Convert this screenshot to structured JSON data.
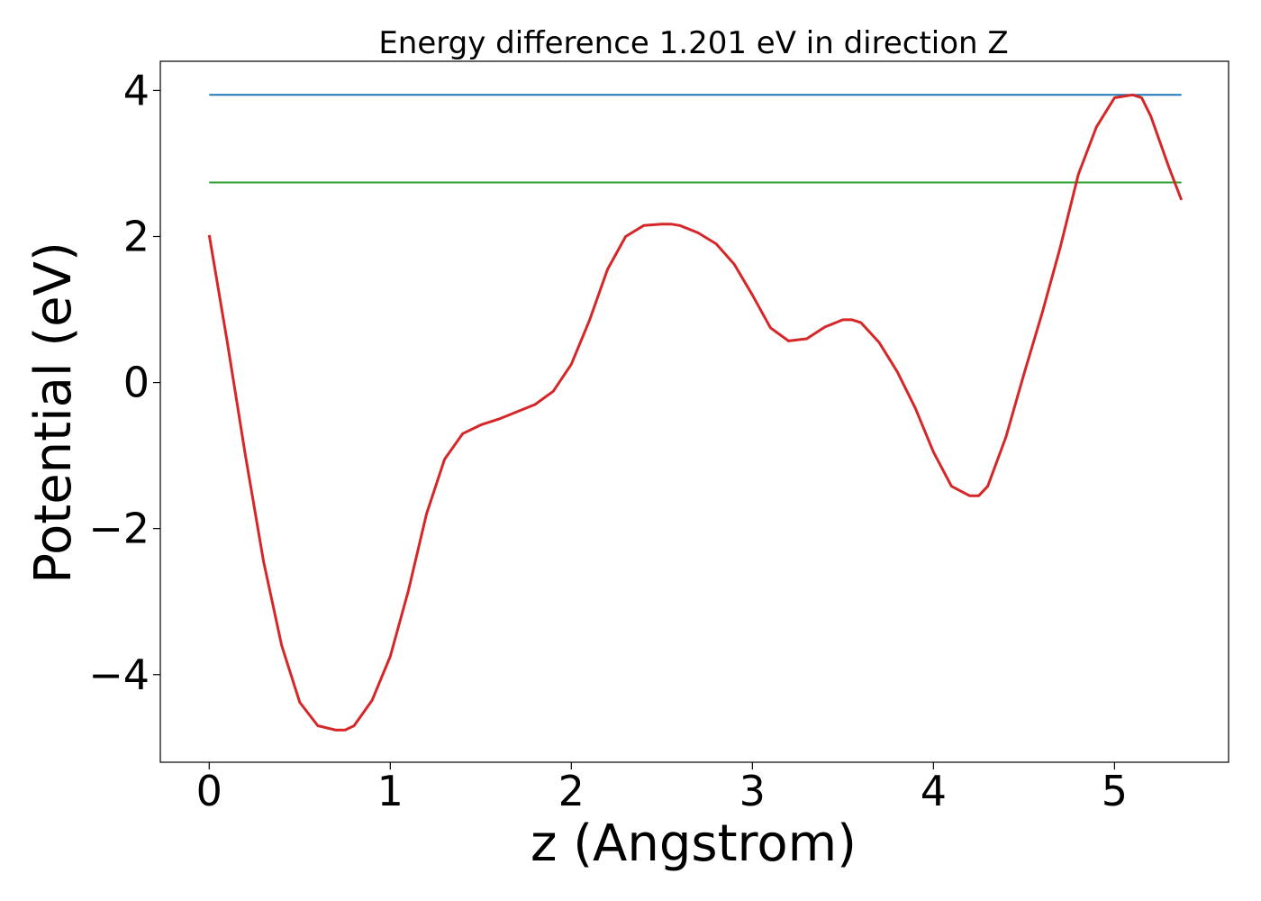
{
  "chart_data": {
    "type": "line",
    "title": "Energy difference 1.201 eV in direction Z",
    "xlabel": "z (Angstrom)",
    "ylabel": "Potential (eV)",
    "xlim": [
      -0.27,
      5.63
    ],
    "ylim": [
      -5.2,
      4.4
    ],
    "xticks": [
      0,
      1,
      2,
      3,
      4,
      5
    ],
    "yticks": [
      -4,
      -2,
      0,
      2,
      4
    ],
    "xtick_labels": [
      "0",
      "1",
      "2",
      "3",
      "4",
      "5"
    ],
    "ytick_labels": [
      "−4",
      "−2",
      "0",
      "2",
      "4"
    ],
    "grid": false,
    "series": [
      {
        "color": "#d62728",
        "x": [
          0,
          0.1,
          0.2,
          0.3,
          0.4,
          0.5,
          0.6,
          0.7,
          0.75,
          0.8,
          0.9,
          1.0,
          1.1,
          1.2,
          1.3,
          1.4,
          1.5,
          1.6,
          1.7,
          1.8,
          1.9,
          2.0,
          2.1,
          2.2,
          2.3,
          2.4,
          2.5,
          2.55,
          2.6,
          2.7,
          2.8,
          2.9,
          3.0,
          3.1,
          3.2,
          3.3,
          3.4,
          3.5,
          3.55,
          3.6,
          3.7,
          3.8,
          3.9,
          4.0,
          4.1,
          4.2,
          4.25,
          4.3,
          4.4,
          4.5,
          4.6,
          4.7,
          4.8,
          4.9,
          5.0,
          5.1,
          5.15,
          5.2,
          5.3,
          5.37
        ],
        "y": [
          2.02,
          0.55,
          -1.0,
          -2.45,
          -3.6,
          -4.38,
          -4.7,
          -4.76,
          -4.76,
          -4.7,
          -4.35,
          -3.75,
          -2.85,
          -1.8,
          -1.05,
          -0.7,
          -0.58,
          -0.5,
          -0.4,
          -0.3,
          -0.12,
          0.25,
          0.85,
          1.55,
          2.0,
          2.15,
          2.17,
          2.17,
          2.15,
          2.05,
          1.9,
          1.62,
          1.2,
          0.75,
          0.57,
          0.6,
          0.76,
          0.86,
          0.86,
          0.82,
          0.55,
          0.15,
          -0.35,
          -0.95,
          -1.42,
          -1.55,
          -1.55,
          -1.42,
          -0.75,
          0.12,
          0.95,
          1.85,
          2.85,
          3.5,
          3.9,
          3.94,
          3.9,
          3.65,
          2.95,
          2.5
        ]
      },
      {
        "color": "#1f77b4",
        "x": [
          0,
          5.37
        ],
        "y": [
          3.94,
          3.94
        ]
      },
      {
        "color": "#2ca02c",
        "x": [
          0,
          5.37
        ],
        "y": [
          2.74,
          2.74
        ]
      }
    ]
  }
}
